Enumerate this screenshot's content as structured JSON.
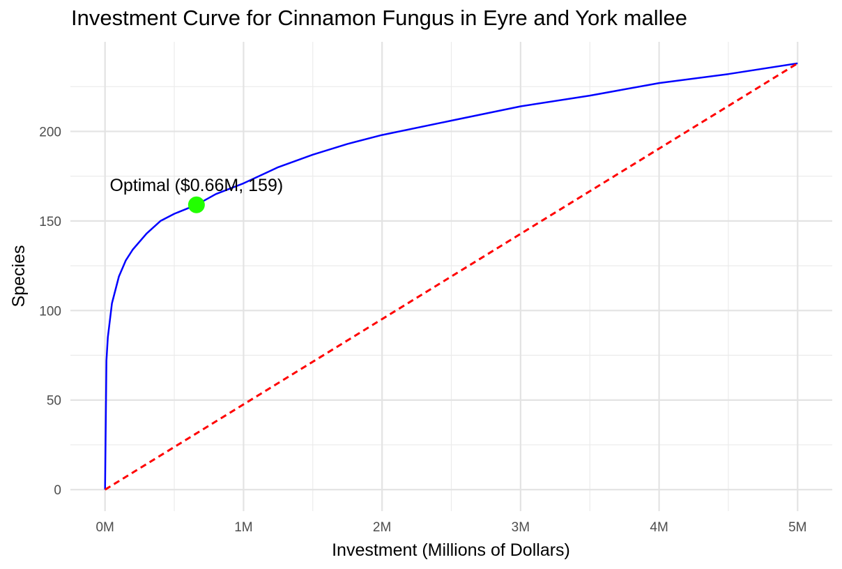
{
  "chart_data": {
    "type": "line",
    "title": "Investment Curve for Cinnamon Fungus in Eyre and York mallee",
    "xlabel": "Investment (Millions of Dollars)",
    "ylabel": "Species",
    "xlim": [
      -0.25,
      5.25
    ],
    "ylim": [
      -12,
      250
    ],
    "x_ticks": [
      0,
      1,
      2,
      3,
      4,
      5
    ],
    "x_tick_labels": [
      "0M",
      "1M",
      "2M",
      "3M",
      "4M",
      "5M"
    ],
    "y_ticks": [
      0,
      50,
      100,
      150,
      200
    ],
    "y_tick_labels": [
      "0",
      "50",
      "100",
      "150",
      "200"
    ],
    "grid": true,
    "legend": "none",
    "series": [
      {
        "style": "solid",
        "color": "#0000ff",
        "x": [
          0,
          0.01,
          0.02,
          0.05,
          0.1,
          0.15,
          0.2,
          0.3,
          0.4,
          0.5,
          0.66,
          0.8,
          1.0,
          1.25,
          1.5,
          1.75,
          2.0,
          2.5,
          3.0,
          3.5,
          4.0,
          4.5,
          5.0
        ],
        "y": [
          0,
          72,
          85,
          104,
          119,
          128,
          134,
          143,
          150,
          154,
          159,
          165,
          171,
          180,
          187,
          193,
          198,
          206,
          214,
          220,
          227,
          232,
          238
        ]
      },
      {
        "style": "dashed",
        "color": "#ff0000",
        "x": [
          0,
          5
        ],
        "y": [
          0,
          238
        ]
      }
    ],
    "annotations": [
      {
        "label": "Optimal ($0.66M, 159)",
        "x": 0.66,
        "y": 159,
        "marker_color": "#22ff00"
      }
    ]
  }
}
